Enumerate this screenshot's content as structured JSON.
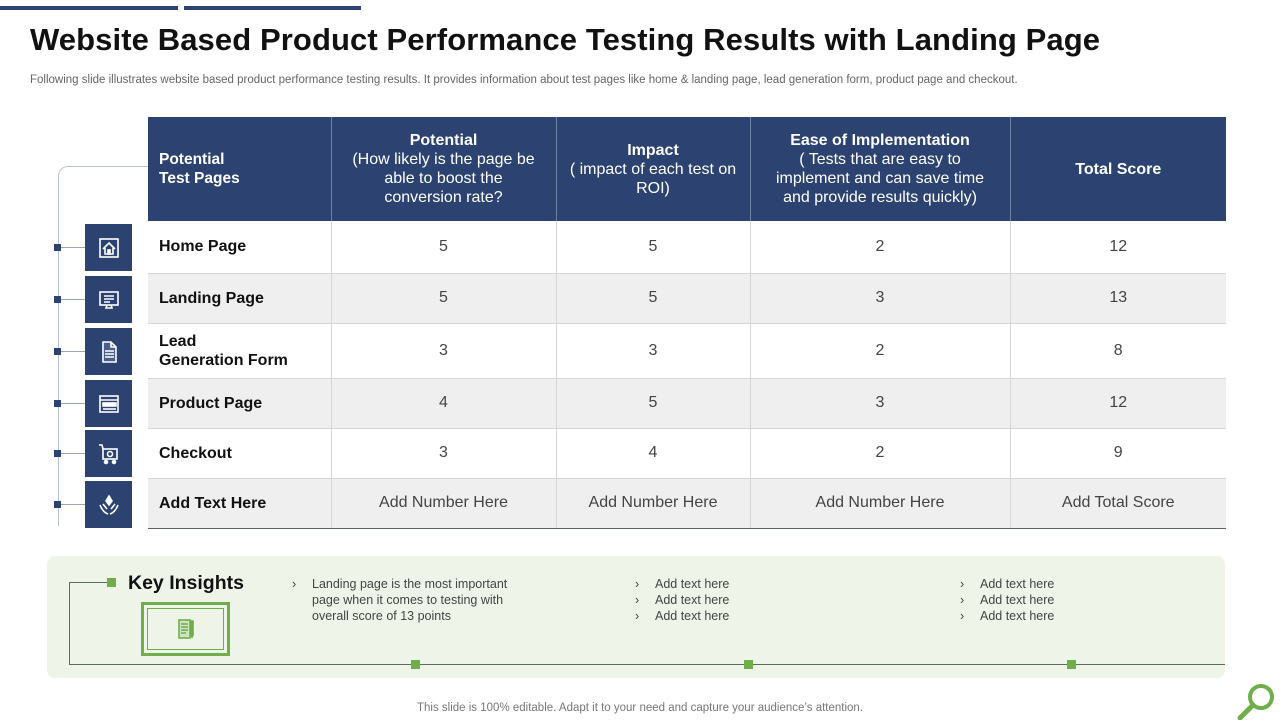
{
  "title": "Website Based Product Performance Testing Results with Landing Page",
  "subtitle": "Following slide illustrates website based product performance testing results. It  provides information about test pages like home & landing page, lead generation form, product page and checkout.",
  "table": {
    "headers": [
      {
        "line1": "Potential",
        "line2": "Test Pages"
      },
      {
        "bold": "Potential",
        "detail": "(How likely is the page be able to boost the conversion rate?"
      },
      {
        "bold": "Impact",
        "detail": "( impact of each test on ROI)"
      },
      {
        "bold": "Ease of Implementation",
        "detail": "( Tests that are easy to implement and can save time and provide results quickly)"
      },
      {
        "bold": "Total Score",
        "detail": ""
      }
    ],
    "rows": [
      {
        "page": "Home Page",
        "potential": "5",
        "impact": "5",
        "ease": "2",
        "total": "12",
        "icon": "home-icon"
      },
      {
        "page": "Landing Page",
        "potential": "5",
        "impact": "5",
        "ease": "3",
        "total": "13",
        "icon": "monitor-icon"
      },
      {
        "page_line1": "Lead",
        "page_line2": "Generation Form",
        "potential": "3",
        "impact": "3",
        "ease": "2",
        "total": "8",
        "icon": "document-icon"
      },
      {
        "page": "Product Page",
        "potential": "4",
        "impact": "5",
        "ease": "3",
        "total": "12",
        "icon": "browser-window-icon"
      },
      {
        "page": "Checkout",
        "potential": "3",
        "impact": "4",
        "ease": "2",
        "total": "9",
        "icon": "shopping-cart-icon"
      },
      {
        "page": "Add Text Here",
        "potential": "Add Number Here",
        "impact": "Add Number Here",
        "ease": "Add Number Here",
        "total": "Add Total Score",
        "icon": "hands-care-icon"
      }
    ]
  },
  "insights": {
    "title": "Key Insights",
    "icon": "notebook-pencil-icon",
    "col1": [
      "Landing  page is the most important",
      "page  when  it  comes to testing with",
      "overall  score  of 13 points"
    ],
    "col2": [
      "Add text here",
      "Add text here",
      "Add text here"
    ],
    "col3": [
      "Add text here",
      "Add text here",
      "Add text here"
    ]
  },
  "footer": "This slide is 100% editable. Adapt it to your need and capture your audience’s attention.",
  "colors": {
    "navy": "#2c4372",
    "green": "#6fae4b",
    "insight_bg": "#eef5e8",
    "stripe": "#efefef"
  }
}
